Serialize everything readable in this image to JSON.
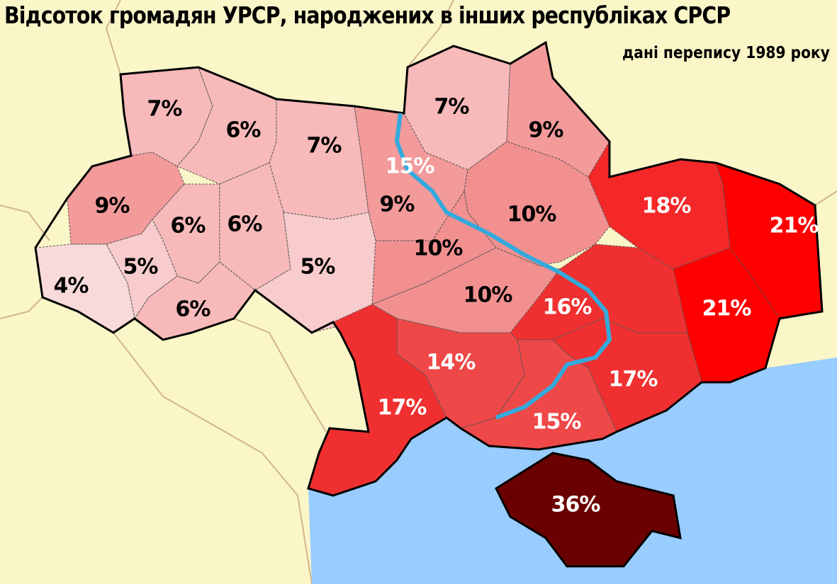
{
  "header": {
    "title": "Відсоток громадян УРСР, народжених в інших республіках СРСР",
    "subtitle": "дані перепису 1989 року"
  },
  "colors": {
    "land_background": "#faf6c8",
    "sea": "#99ccff",
    "river": "#33aadd",
    "border": "#000000",
    "neighbor_border": "#d2b48c"
  },
  "regions": [
    {
      "id": "volyn",
      "label": "7%",
      "value": 7,
      "color": "#f7b9b9",
      "text_color": "#000000"
    },
    {
      "id": "rivne",
      "label": "6%",
      "value": 6,
      "color": "#f7b9b9",
      "text_color": "#000000"
    },
    {
      "id": "zhytomyr",
      "label": "7%",
      "value": 7,
      "color": "#f7b9b9",
      "text_color": "#000000"
    },
    {
      "id": "chernihiv",
      "label": "7%",
      "value": 7,
      "color": "#f7b9b9",
      "text_color": "#000000"
    },
    {
      "id": "kyiv-oblast",
      "label": "9%",
      "value": 9,
      "color": "#f39a9a",
      "text_color": "#000000"
    },
    {
      "id": "sumy",
      "label": "9%",
      "value": 9,
      "color": "#f39a9a",
      "text_color": "#000000"
    },
    {
      "id": "lviv",
      "label": "9%",
      "value": 9,
      "color": "#f39a9a",
      "text_color": "#000000"
    },
    {
      "id": "ternopil",
      "label": "6%",
      "value": 6,
      "color": "#f7b9b9",
      "text_color": "#000000"
    },
    {
      "id": "khmelnytskyi",
      "label": "6%",
      "value": 6,
      "color": "#f7b9b9",
      "text_color": "#000000"
    },
    {
      "id": "zakarpattia",
      "label": "4%",
      "value": 4,
      "color": "#f9dada",
      "text_color": "#000000"
    },
    {
      "id": "ivano-frankivsk",
      "label": "5%",
      "value": 5,
      "color": "#f8cccc",
      "text_color": "#000000"
    },
    {
      "id": "chernivtsi",
      "label": "6%",
      "value": 6,
      "color": "#f7b9b9",
      "text_color": "#000000"
    },
    {
      "id": "vinnytsia",
      "label": "5%",
      "value": 5,
      "color": "#f8cccc",
      "text_color": "#000000"
    },
    {
      "id": "poltava",
      "label": "10%",
      "value": 10,
      "color": "#f29090",
      "text_color": "#000000"
    },
    {
      "id": "cherkasy",
      "label": "10%",
      "value": 10,
      "color": "#f29090",
      "text_color": "#000000"
    },
    {
      "id": "kirovohrad",
      "label": "10%",
      "value": 10,
      "color": "#f29090",
      "text_color": "#000000"
    },
    {
      "id": "kharkiv",
      "label": "18%",
      "value": 18,
      "color": "#f42828",
      "text_color": "#ffffff"
    },
    {
      "id": "luhansk",
      "label": "21%",
      "value": 21,
      "color": "#ff0000",
      "text_color": "#ffffff"
    },
    {
      "id": "donetsk",
      "label": "21%",
      "value": 21,
      "color": "#ff0000",
      "text_color": "#ffffff"
    },
    {
      "id": "dnipropetrovsk",
      "label": "16%",
      "value": 16,
      "color": "#f03030",
      "text_color": "#ffffff"
    },
    {
      "id": "zaporizhzhia",
      "label": "17%",
      "value": 17,
      "color": "#f03030",
      "text_color": "#ffffff"
    },
    {
      "id": "kherson",
      "label": "15%",
      "value": 15,
      "color": "#ee4848",
      "text_color": "#ffffff"
    },
    {
      "id": "mykolaiv",
      "label": "14%",
      "value": 14,
      "color": "#ee4848",
      "text_color": "#ffffff"
    },
    {
      "id": "odesa",
      "label": "17%",
      "value": 17,
      "color": "#f03030",
      "text_color": "#ffffff"
    },
    {
      "id": "crimea",
      "label": "36%",
      "value": 36,
      "color": "#6b0000",
      "text_color": "#ffffff"
    },
    {
      "id": "kyiv-city",
      "label": "15%",
      "value": 15,
      "color": "#f39a9a",
      "text_color": "#ffffff"
    }
  ]
}
